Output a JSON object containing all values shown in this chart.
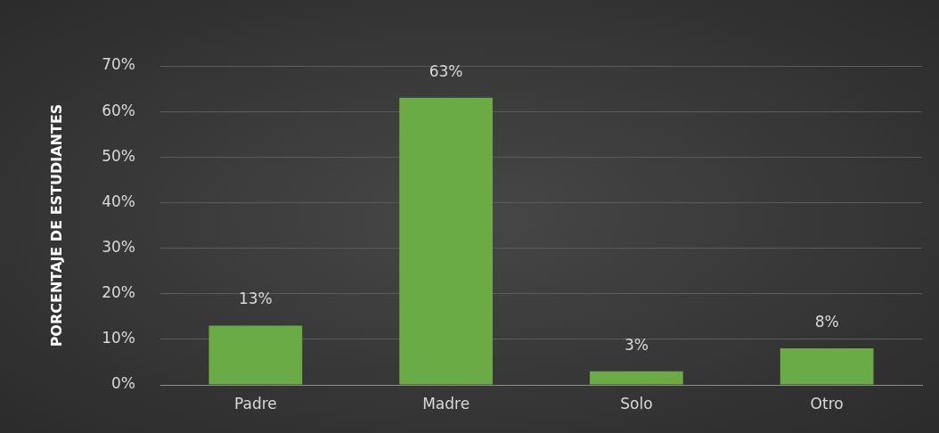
{
  "chart_data": {
    "type": "bar",
    "ylabel": "PORCENTAJE DE ESTUDIANTES",
    "categories": [
      "Padre",
      "Madre",
      "Solo",
      "Otro"
    ],
    "values": [
      13,
      63,
      3,
      8
    ],
    "value_labels": [
      "13%",
      "63%",
      "3%",
      "8%"
    ],
    "color": "#6aab45",
    "ylim": [
      0,
      70
    ],
    "yticks": [
      {
        "value": 0,
        "label": "0%"
      },
      {
        "value": 10,
        "label": "10%"
      },
      {
        "value": 20,
        "label": "20%"
      },
      {
        "value": 30,
        "label": "30%"
      },
      {
        "value": 40,
        "label": "40%"
      },
      {
        "value": 50,
        "label": "50%"
      },
      {
        "value": 60,
        "label": "60%"
      },
      {
        "value": 70,
        "label": "70%"
      }
    ],
    "grid": "y",
    "legend": false
  }
}
